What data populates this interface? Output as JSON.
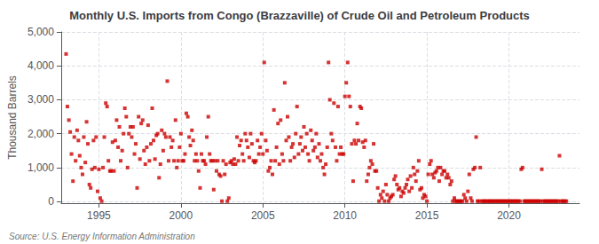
{
  "chart_data": {
    "type": "scatter",
    "title": "Monthly U.S. Imports from Congo (Brazzaville) of Crude Oil and Petroleum Products",
    "ylabel": "Thousand Barrels",
    "annotations": [
      "Source: U.S. Energy Information Administration"
    ],
    "color": "#cc0000",
    "marker": "square",
    "grid": true,
    "xlim": [
      1992.7,
      2024.3
    ],
    "ylim": [
      -50,
      5000
    ],
    "xticks": [
      1995,
      2000,
      2005,
      2010,
      2015,
      2020
    ],
    "yticks": [
      0,
      {
        "value": 1000,
        "label": "1,000"
      },
      {
        "value": 2000,
        "label": "2,000"
      },
      {
        "value": 3000,
        "label": "3,000"
      },
      {
        "value": 4000,
        "label": "4,000"
      },
      {
        "value": 5000,
        "label": "5,000"
      }
    ],
    "x": [
      1993.0,
      1993.08,
      1993.17,
      1993.25,
      1993.33,
      1993.42,
      1993.5,
      1993.58,
      1993.67,
      1993.75,
      1993.83,
      1993.92,
      1994.0,
      1994.08,
      1994.17,
      1994.25,
      1994.33,
      1994.42,
      1994.5,
      1994.58,
      1994.67,
      1994.75,
      1994.83,
      1994.92,
      1995.0,
      1995.08,
      1995.17,
      1995.25,
      1995.33,
      1995.42,
      1995.5,
      1995.58,
      1995.67,
      1995.75,
      1995.83,
      1995.92,
      1996.0,
      1996.08,
      1996.17,
      1996.25,
      1996.33,
      1996.42,
      1996.5,
      1996.58,
      1996.67,
      1996.75,
      1996.83,
      1996.92,
      1997.0,
      1997.08,
      1997.17,
      1997.25,
      1997.33,
      1997.42,
      1997.5,
      1997.58,
      1997.67,
      1997.75,
      1997.83,
      1997.92,
      1998.0,
      1998.08,
      1998.17,
      1998.25,
      1998.33,
      1998.42,
      1998.5,
      1998.58,
      1998.67,
      1998.75,
      1998.83,
      1998.92,
      1999.0,
      1999.08,
      1999.17,
      1999.25,
      1999.33,
      1999.42,
      1999.5,
      1999.58,
      1999.67,
      1999.75,
      1999.83,
      1999.92,
      2000.0,
      2000.08,
      2000.17,
      2000.25,
      2000.33,
      2000.42,
      2000.5,
      2000.58,
      2000.67,
      2000.75,
      2000.83,
      2000.92,
      2001.0,
      2001.08,
      2001.17,
      2001.25,
      2001.33,
      2001.42,
      2001.5,
      2001.58,
      2001.67,
      2001.75,
      2001.83,
      2001.92,
      2002.0,
      2002.08,
      2002.17,
      2002.25,
      2002.33,
      2002.42,
      2002.5,
      2002.58,
      2002.67,
      2002.75,
      2002.83,
      2002.92,
      2003.0,
      2003.08,
      2003.17,
      2003.25,
      2003.33,
      2003.42,
      2003.5,
      2003.58,
      2003.67,
      2003.75,
      2003.83,
      2003.92,
      2004.0,
      2004.08,
      2004.17,
      2004.25,
      2004.33,
      2004.42,
      2004.5,
      2004.58,
      2004.67,
      2004.75,
      2004.83,
      2004.92,
      2005.0,
      2005.08,
      2005.17,
      2005.25,
      2005.33,
      2005.42,
      2005.5,
      2005.58,
      2005.67,
      2005.75,
      2005.83,
      2005.92,
      2006.0,
      2006.08,
      2006.17,
      2006.25,
      2006.33,
      2006.42,
      2006.5,
      2006.58,
      2006.67,
      2006.75,
      2006.83,
      2006.92,
      2007.0,
      2007.08,
      2007.17,
      2007.25,
      2007.33,
      2007.42,
      2007.5,
      2007.58,
      2007.67,
      2007.75,
      2007.83,
      2007.92,
      2008.0,
      2008.08,
      2008.17,
      2008.25,
      2008.33,
      2008.42,
      2008.5,
      2008.58,
      2008.67,
      2008.75,
      2008.83,
      2008.92,
      2009.0,
      2009.08,
      2009.17,
      2009.25,
      2009.33,
      2009.42,
      2009.5,
      2009.58,
      2009.67,
      2009.75,
      2009.83,
      2009.92,
      2010.0,
      2010.08,
      2010.17,
      2010.25,
      2010.33,
      2010.42,
      2010.5,
      2010.58,
      2010.67,
      2010.75,
      2010.83,
      2010.92,
      2011.0,
      2011.08,
      2011.17,
      2011.25,
      2011.33,
      2011.42,
      2011.5,
      2011.58,
      2011.67,
      2011.75,
      2011.83,
      2011.92,
      2012.0,
      2012.08,
      2012.17,
      2012.25,
      2012.33,
      2012.42,
      2012.5,
      2012.58,
      2012.67,
      2012.75,
      2012.83,
      2012.92,
      2013.0,
      2013.08,
      2013.17,
      2013.25,
      2013.33,
      2013.42,
      2013.5,
      2013.58,
      2013.67,
      2013.75,
      2013.83,
      2013.92,
      2014.0,
      2014.08,
      2014.17,
      2014.25,
      2014.33,
      2014.42,
      2014.5,
      2014.58,
      2014.67,
      2014.75,
      2014.83,
      2014.92,
      2015.0,
      2015.08,
      2015.17,
      2015.25,
      2015.33,
      2015.42,
      2015.5,
      2015.58,
      2015.67,
      2015.75,
      2015.83,
      2015.92,
      2016.0,
      2016.08,
      2016.17,
      2016.25,
      2016.33,
      2016.42,
      2016.5,
      2016.58,
      2016.67,
      2016.75,
      2016.83,
      2016.92,
      2017.0,
      2017.08,
      2017.17,
      2017.25,
      2017.33,
      2017.42,
      2017.5,
      2017.58,
      2017.67,
      2017.75,
      2017.83,
      2017.92,
      2018.0,
      2018.08,
      2018.17,
      2018.25,
      2018.33,
      2018.42,
      2018.5,
      2018.58,
      2018.67,
      2018.75,
      2018.83,
      2018.92,
      2019.0,
      2019.08,
      2019.17,
      2019.25,
      2019.33,
      2019.42,
      2019.5,
      2019.58,
      2019.67,
      2019.75,
      2019.83,
      2019.92,
      2020.0,
      2020.08,
      2020.17,
      2020.25,
      2020.33,
      2020.42,
      2020.5,
      2020.58,
      2020.67,
      2020.75,
      2020.83,
      2020.92,
      2021.0,
      2021.08,
      2021.17,
      2021.25,
      2021.33,
      2021.42,
      2021.5,
      2021.58,
      2021.67,
      2021.75,
      2021.83,
      2021.92,
      2022.0,
      2022.08,
      2022.17,
      2022.25,
      2022.33,
      2022.42,
      2022.5,
      2022.58,
      2022.67,
      2022.75,
      2022.83,
      2022.92,
      2023.0,
      2023.08,
      2023.17,
      2023.25,
      2023.33,
      2023.42,
      2023.5
    ],
    "values": [
      4350,
      2800,
      2400,
      2050,
      1400,
      600,
      1900,
      1200,
      2100,
      1800,
      1350,
      1000,
      800,
      1900,
      1150,
      2350,
      1700,
      500,
      400,
      950,
      1800,
      1000,
      1900,
      300,
      950,
      100,
      10,
      1000,
      1900,
      2900,
      2800,
      1200,
      900,
      900,
      1750,
      900,
      1800,
      2400,
      1600,
      2200,
      1200,
      1500,
      2000,
      2750,
      2500,
      1000,
      2000,
      2200,
      1900,
      2200,
      1400,
      1700,
      400,
      2500,
      1250,
      2300,
      2400,
      1500,
      1100,
      1600,
      2250,
      1200,
      1700,
      2750,
      1800,
      1250,
      1950,
      2000,
      700,
      1100,
      2100,
      1500,
      2000,
      1900,
      3550,
      1200,
      1900,
      1600,
      1800,
      1200,
      2400,
      1000,
      1200,
      1600,
      2000,
      1200,
      1200,
      1400,
      2600,
      2500,
      1900,
      1650,
      2100,
      1800,
      1200,
      1400,
      1200,
      900,
      400,
      1400,
      1200,
      1200,
      1100,
      1900,
      2500,
      1400,
      1200,
      1200,
      350,
      1200,
      900,
      1200,
      800,
      750,
      10,
      1200,
      800,
      1100,
      10,
      100,
      1150,
      1200,
      1100,
      1250,
      1100,
      1900,
      1200,
      1650,
      1800,
      1400,
      1200,
      2000,
      1800,
      1600,
      1300,
      2000,
      1700,
      1200,
      1150,
      1200,
      1800,
      1400,
      1600,
      2000,
      1400,
      4100,
      1800,
      1500,
      900,
      1000,
      1200,
      800,
      2700,
      1200,
      1600,
      2300,
      1100,
      2400,
      1400,
      1200,
      3500,
      1800,
      2500,
      1900,
      1200,
      1600,
      1700,
      1300,
      2000,
      2800,
      1400,
      1700,
      1900,
      1500,
      2200,
      1600,
      2000,
      1400,
      1200,
      2100,
      1800,
      1500,
      1600,
      2000,
      1300,
      1700,
      1200,
      1400,
      1000,
      800,
      1100,
      1600,
      4100,
      3000,
      2000,
      1800,
      2900,
      1600,
      1200,
      2800,
      1400,
      1600,
      1400,
      1400,
      3100,
      3500,
      4100,
      3100,
      2800,
      1700,
      600,
      1800,
      1700,
      2300,
      1800,
      2800,
      2750,
      1750,
      1600,
      1800,
      600,
      800,
      1000,
      1200,
      1100,
      1700,
      900,
      900,
      400,
      10,
      200,
      100,
      300,
      10,
      500,
      200,
      10,
      100,
      150,
      200,
      650,
      750,
      500,
      350,
      400,
      150,
      300,
      250,
      400,
      500,
      650,
      300,
      750,
      400,
      1000,
      800,
      600,
      900,
      1200,
      350,
      400,
      100,
      200,
      150,
      10,
      800,
      1100,
      1200,
      800,
      700,
      850,
      900,
      1000,
      600,
      1000,
      800,
      900,
      900,
      700,
      800,
      700,
      500,
      600,
      10,
      100,
      10,
      10,
      10,
      10,
      10,
      10,
      200,
      100,
      10,
      300,
      800,
      100,
      10,
      950,
      1000,
      1900,
      10,
      10,
      1000,
      10,
      10,
      10,
      10,
      10,
      10,
      10,
      10,
      10,
      10,
      10,
      10,
      10,
      10,
      10,
      10,
      10,
      10,
      10,
      10,
      10,
      10,
      10,
      10,
      10,
      10,
      10,
      10,
      10,
      950,
      1000,
      10,
      10,
      10,
      10,
      10,
      10,
      10,
      10,
      10,
      10,
      10,
      10,
      10,
      950,
      10,
      10,
      10,
      10,
      10,
      10,
      10,
      10,
      10,
      10,
      10,
      10,
      1350,
      10,
      10,
      10,
      10,
      10
    ]
  }
}
